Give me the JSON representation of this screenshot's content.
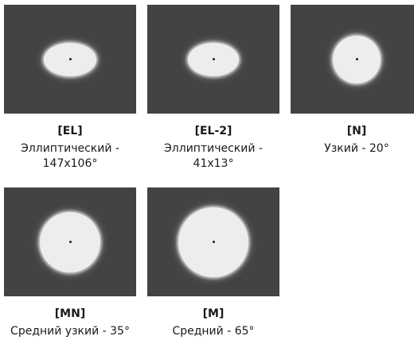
{
  "options": [
    {
      "code": "[EL]",
      "description": "Эллиптический - 147x106°"
    },
    {
      "code": "[EL-2]",
      "description": "Эллиптический - 41x13°"
    },
    {
      "code": "[N]",
      "description": "Узкий - 20°"
    },
    {
      "code": "[MN]",
      "description": "Средний узкий - 35°"
    },
    {
      "code": "[M]",
      "description": "Средний - 65°"
    }
  ],
  "colors": {
    "preview_background": "#434343",
    "beam": "#ededed",
    "text": "#1a1a1a"
  }
}
